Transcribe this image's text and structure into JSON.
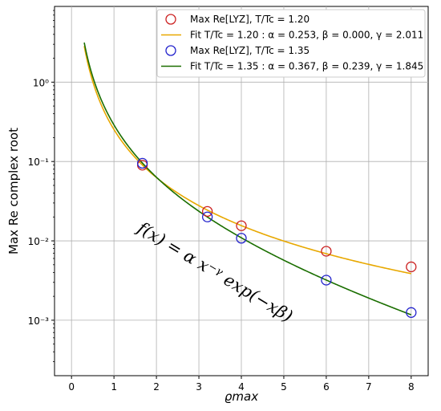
{
  "chart_data": {
    "type": "scatter",
    "title": "",
    "xlabel": "ϱmax",
    "ylabel": "Max Re complex root",
    "xlim": [
      -0.4,
      8.4
    ],
    "ylim": [
      0.0002,
      9
    ],
    "yscale": "log",
    "grid": true,
    "legend_position": "top-right",
    "x_ticks": [
      "0",
      "1",
      "2",
      "3",
      "4",
      "5",
      "6",
      "7",
      "8"
    ],
    "y_ticks": [
      "10⁻³",
      "10⁻²",
      "10⁻¹",
      "10⁰"
    ],
    "annotation": "f(x) = α x⁻ᵞ exp(−xβ)",
    "series": [
      {
        "name": "Max Re[LYZ], T/Tc = 1.20",
        "kind": "points",
        "color": "#cc2222",
        "x": [
          1.67,
          3.2,
          4.0,
          6.0,
          8.0
        ],
        "y": [
          0.09,
          0.0235,
          0.0155,
          0.0074,
          0.0047
        ]
      },
      {
        "name": "Fit T/Tc = 1.20 : α = 0.253, β = 0.000, γ = 2.011",
        "kind": "fit",
        "color": "#e8a800",
        "alpha": 0.253,
        "beta": 0.0,
        "gamma": 2.011
      },
      {
        "name": "Max Re[LYZ], T/Tc = 1.35",
        "kind": "points",
        "color": "#2222cc",
        "x": [
          1.67,
          3.2,
          4.0,
          6.0,
          8.0
        ],
        "y": [
          0.095,
          0.02,
          0.0108,
          0.0032,
          0.00125
        ]
      },
      {
        "name": "Fit T/Tc = 1.35 : α = 0.367, β = 0.239, γ = 1.845",
        "kind": "fit",
        "color": "#1a6e00",
        "alpha": 0.367,
        "beta": 0.239,
        "gamma": 1.845
      }
    ]
  }
}
